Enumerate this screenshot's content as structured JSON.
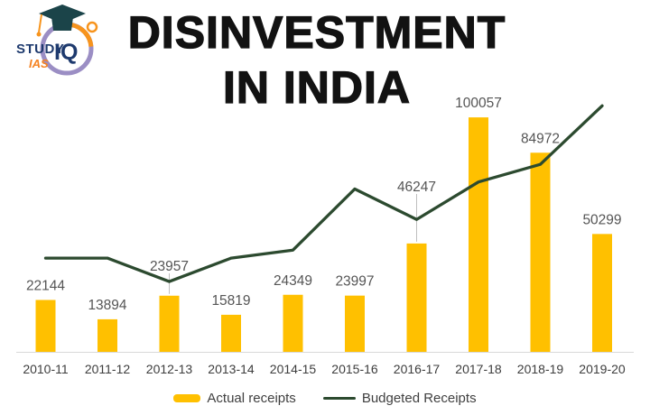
{
  "logo": {
    "brand_study": "STUDY",
    "brand_iq": "IQ",
    "brand_ias": "IAS",
    "colors": {
      "navy": "#1E3A6E",
      "orange": "#F58220",
      "cap": "#1B4449",
      "ring_purple": "#9B8EC4"
    }
  },
  "title": {
    "line1": "DISINVESTMENT",
    "line2": "IN INDIA"
  },
  "colors": {
    "bar": "#FFC000",
    "line": "#2C4A2F",
    "data_label": "#555555",
    "axis_label": "#3d3d3d",
    "axis_line": "#D9D9D9",
    "leader_line": "#BFBFBF",
    "title_text": "#121212"
  },
  "chart_data": {
    "type": "bar+line",
    "categories": [
      "2010-11",
      "2011-12",
      "2012-13",
      "2013-14",
      "2014-15",
      "2015-16",
      "2016-17",
      "2017-18",
      "2018-19",
      "2019-20"
    ],
    "series": [
      {
        "name": "Actual receipts",
        "type": "bar",
        "color": "#FFC000",
        "labels_visible": true,
        "values": [
          22144,
          13894,
          23957,
          15819,
          24349,
          23997,
          46247,
          100057,
          84972,
          50299
        ]
      },
      {
        "name": "Budgeted Receipts",
        "type": "line",
        "color": "#2C4A2F",
        "labels_visible": false,
        "values": [
          40000,
          40000,
          30000,
          40000,
          43425,
          69500,
          56500,
          72500,
          80000,
          105000
        ]
      }
    ],
    "title": "DISINVESTMENT IN INDIA",
    "xlabel": "",
    "ylabel": "",
    "ylim": [
      0,
      110000
    ],
    "grid": false,
    "y_axis_visible": false,
    "legend_position": "bottom"
  }
}
